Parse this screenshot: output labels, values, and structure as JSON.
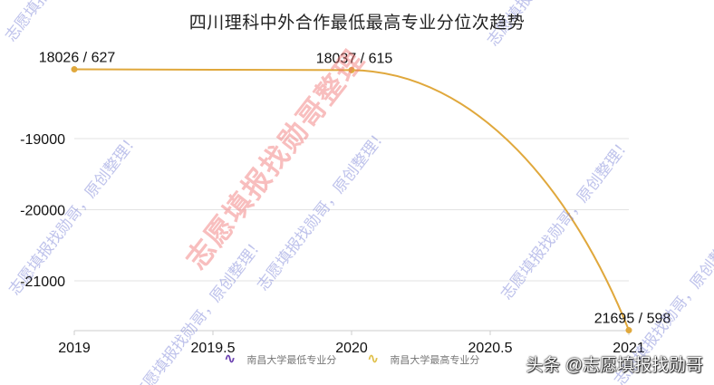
{
  "title": "四川理科中外合作最低最高专业分位次趋势",
  "colors": {
    "series_max": "#e0a83c",
    "series_min": "#6a3fb0",
    "grid": "#e3e3e3",
    "axis": "#cccccc",
    "text": "#111111"
  },
  "legend": [
    {
      "label": "南昌大学最低专业分",
      "icon": "wave-icon",
      "color": "#6a3fb0"
    },
    {
      "label": "南昌大学最高专业分",
      "icon": "wave-icon",
      "color": "#e0c04a"
    }
  ],
  "credit": "头条 @志愿填报找勋哥",
  "watermarks": {
    "blue_text": "志愿填报找勋哥，原创整理！",
    "red_text": "志愿填报找勋哥整理"
  },
  "chart_data": {
    "type": "line",
    "title": "四川理科中外合作最低最高专业分位次趋势",
    "xlabel": "",
    "ylabel": "",
    "x_ticks": [
      "2019",
      "2019.5",
      "2020",
      "2020.5",
      "2021"
    ],
    "y_ticks": [
      "-19000",
      "-20000",
      "-21000"
    ],
    "xlim": [
      2019,
      2021
    ],
    "ylim": [
      -21700,
      -17900
    ],
    "grid": true,
    "legend_position": "bottom",
    "smooth": true,
    "series": [
      {
        "name": "南昌大学最低专业分",
        "x": [],
        "values": []
      },
      {
        "name": "南昌大学最高专业分",
        "x": [
          2019,
          2020,
          2021
        ],
        "values": [
          -18026,
          -18037,
          -21695
        ],
        "labels": [
          "18026 / 627",
          "18037 / 615",
          "21695 / 598"
        ]
      }
    ]
  }
}
